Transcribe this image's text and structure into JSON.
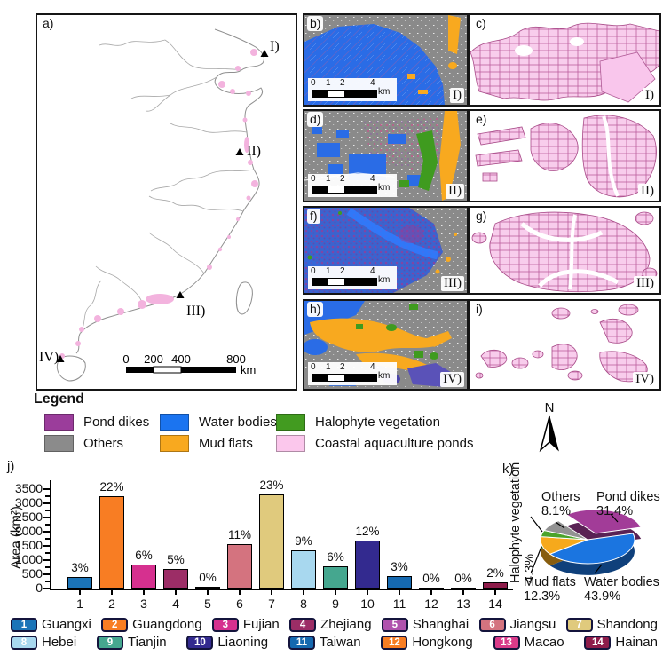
{
  "panels": {
    "a": {
      "label": "a)",
      "markers": [
        "I)",
        "II)",
        "III)",
        "IV)"
      ],
      "scalebar": {
        "t0": "0",
        "t1": "200",
        "t2": "400",
        "t3": "800",
        "unit": "km"
      }
    },
    "b": {
      "label": "b)",
      "region": "I)"
    },
    "c": {
      "label": "c)",
      "region": "I)"
    },
    "d": {
      "label": "d)",
      "region": "II)"
    },
    "e": {
      "label": "e)",
      "region": "II)"
    },
    "f": {
      "label": "f)",
      "region": "III)"
    },
    "g": {
      "label": "g)",
      "region": "III)"
    },
    "h": {
      "label": "h)",
      "region": "IV)"
    },
    "i": {
      "label": "i)",
      "region": "IV)"
    },
    "j": {
      "label": "j)"
    },
    "k": {
      "label": "k)"
    }
  },
  "mini_scalebar": {
    "t0": "0",
    "t1": "1",
    "t2": "2",
    "t3": "4",
    "unit": "km"
  },
  "legend": {
    "title": "Legend",
    "items": [
      {
        "label": "Pond dikes",
        "color": "#9b3d9b"
      },
      {
        "label": "Others",
        "color": "#8b8b8b"
      },
      {
        "label": "Water bodies",
        "color": "#1b74f0"
      },
      {
        "label": "Mud flats",
        "color": "#f8a91f"
      },
      {
        "label": "Halophyte vegetation",
        "color": "#429b20"
      },
      {
        "label": "Coastal aquaculture ponds",
        "color": "#fbc7ec"
      }
    ]
  },
  "north_arrow_label": "N",
  "chart_data": [
    {
      "type": "bar",
      "title": "",
      "xlabel": "",
      "ylabel": "Area (km²)",
      "categories": [
        "1",
        "2",
        "3",
        "4",
        "5",
        "6",
        "7",
        "8",
        "9",
        "10",
        "11",
        "12",
        "13",
        "14"
      ],
      "values": [
        400,
        3250,
        850,
        680,
        50,
        1560,
        3300,
        1330,
        790,
        1700,
        450,
        40,
        15,
        230
      ],
      "pct_labels": [
        "3%",
        "22%",
        "6%",
        "5%",
        "0%",
        "11%",
        "23%",
        "9%",
        "6%",
        "12%",
        "3%",
        "0%",
        "0%",
        "2%"
      ],
      "ylim": [
        0,
        3500
      ],
      "yticks": [
        0,
        500,
        1000,
        1500,
        2000,
        2500,
        3000,
        3500
      ],
      "grid": false,
      "legend_position": "none"
    },
    {
      "type": "pie",
      "slices": [
        {
          "label": "Water bodies",
          "pct": 43.9,
          "pct_label": "43.9%",
          "color": "#1b75e0",
          "exploded": false
        },
        {
          "label": "Mud flats",
          "pct": 12.3,
          "pct_label": "12.3%",
          "color": "#f6a91c",
          "exploded": false
        },
        {
          "label": "Halophyte vegetation",
          "pct": 4.3,
          "pct_label": "4.3%",
          "color": "#4aa32a",
          "exploded": false
        },
        {
          "label": "Others",
          "pct": 8.1,
          "pct_label": "8.1%",
          "color": "#929292",
          "exploded": false
        },
        {
          "label": "Pond dikes",
          "pct": 31.4,
          "pct_label": "31.4%",
          "color": "#a23c98",
          "exploded": true
        }
      ]
    }
  ],
  "provinces": [
    {
      "num": "1",
      "name": "Guangxi",
      "color": "#1b74b8"
    },
    {
      "num": "2",
      "name": "Guangdong",
      "color": "#f87d23"
    },
    {
      "num": "3",
      "name": "Fujian",
      "color": "#d6308f"
    },
    {
      "num": "4",
      "name": "Zhejiang",
      "color": "#9c2d66"
    },
    {
      "num": "5",
      "name": "Shanghai",
      "color": "#b052ae"
    },
    {
      "num": "6",
      "name": "Jiangsu",
      "color": "#d4737f"
    },
    {
      "num": "7",
      "name": "Shandong",
      "color": "#e0ca7d"
    },
    {
      "num": "8",
      "name": "Hebei",
      "color": "#a8d8ef"
    },
    {
      "num": "9",
      "name": "Tianjin",
      "color": "#45a78f"
    },
    {
      "num": "10",
      "name": "Liaoning",
      "color": "#332a8f"
    },
    {
      "num": "11",
      "name": "Taiwan",
      "color": "#1569b0"
    },
    {
      "num": "12",
      "name": "Hongkong",
      "color": "#f87d23"
    },
    {
      "num": "13",
      "name": "Macao",
      "color": "#d93a89"
    },
    {
      "num": "14",
      "name": "Hainan",
      "color": "#8e1c4a"
    }
  ]
}
